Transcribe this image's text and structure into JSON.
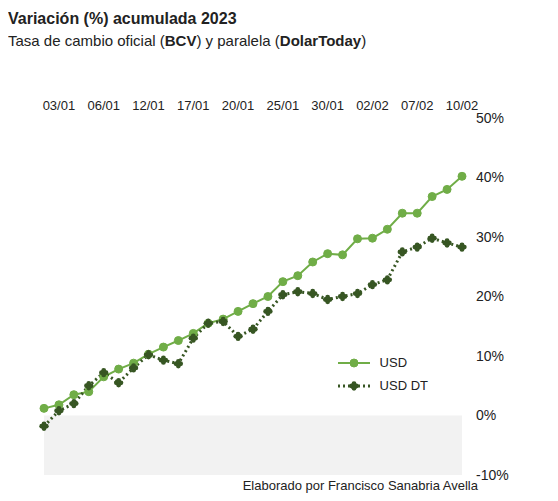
{
  "chart_data": {
    "type": "line",
    "title": "Variación (%) acumulada 2023",
    "subtitle": "Tasa de cambio oficial (BCV) y paralela (DolarToday)",
    "source": "Elaborado por Francisco Sanabria Avella",
    "categories": [
      null,
      "03/01",
      null,
      null,
      "06/01",
      null,
      null,
      "12/01",
      null,
      null,
      "17/01",
      null,
      null,
      "20/01",
      null,
      null,
      "25/01",
      null,
      null,
      "30/01",
      null,
      null,
      "02/02",
      null,
      null,
      "07/02",
      null,
      null,
      "10/02"
    ],
    "series": [
      {
        "name": "USD",
        "color": "#70ad47",
        "marker": "circle",
        "line_style": "solid",
        "values": [
          1.2,
          1.8,
          3.5,
          4.0,
          6.5,
          7.8,
          8.8,
          10.3,
          11.5,
          12.6,
          13.8,
          15.5,
          16.2,
          17.5,
          18.8,
          20.0,
          22.5,
          23.5,
          25.8,
          27.2,
          27.0,
          29.7,
          29.8,
          31.3,
          34.0,
          34.0,
          36.8,
          38.0,
          40.2
        ]
      },
      {
        "name": "USD DT",
        "color": "#375623",
        "marker": "clover",
        "line_style": "dotted",
        "values": [
          -1.8,
          0.8,
          2.0,
          5.0,
          7.2,
          5.5,
          8.0,
          10.2,
          9.3,
          8.7,
          13.0,
          15.5,
          15.8,
          13.3,
          14.5,
          17.5,
          20.3,
          20.8,
          20.5,
          19.5,
          20.0,
          20.5,
          22.0,
          22.8,
          27.5,
          28.3,
          29.8,
          29.0,
          28.3
        ]
      }
    ],
    "ylim": [
      -10,
      50
    ],
    "yticks": [
      {
        "value": -10,
        "label": "-10%"
      },
      {
        "value": 0,
        "label": "0%"
      },
      {
        "value": 10,
        "label": "10%"
      },
      {
        "value": 20,
        "label": "20%"
      },
      {
        "value": 30,
        "label": "30%"
      },
      {
        "value": 40,
        "label": "40%"
      },
      {
        "value": 50,
        "label": "50%"
      }
    ],
    "grid": false,
    "legend": "lower right"
  }
}
